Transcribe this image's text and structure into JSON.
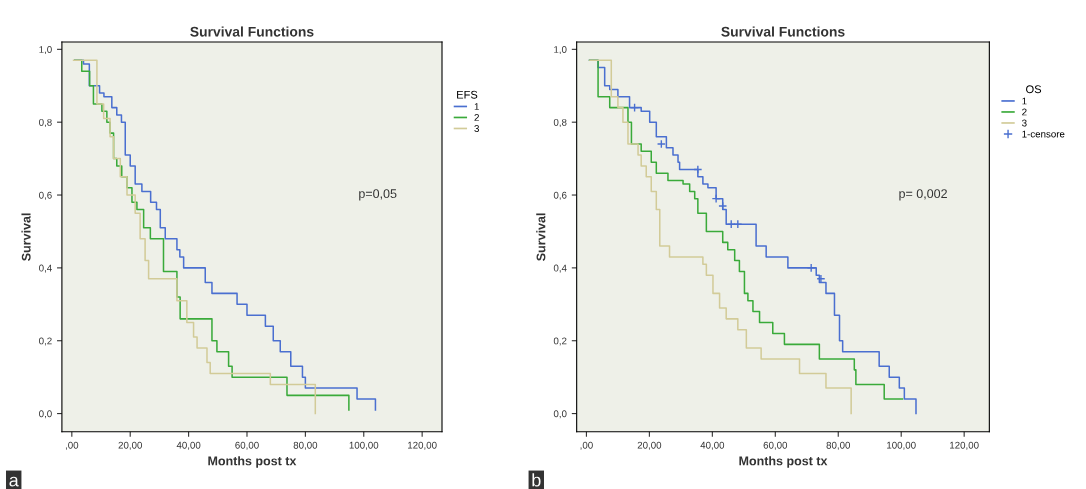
{
  "chart_data": [
    {
      "type": "step",
      "title": "Survival Functions",
      "xlabel": "Months post tx",
      "ylabel": "Survival",
      "legend_title": "EFS",
      "legend": "right",
      "grid": false,
      "xlim": [
        -3.4,
        126.8
      ],
      "ylim": [
        -0.05,
        1.02
      ],
      "xticks": [
        {
          "value": 0,
          "label": ",00"
        },
        {
          "value": 20,
          "label": "20,00"
        },
        {
          "value": 40,
          "label": "40,00"
        },
        {
          "value": 60,
          "label": "60,00"
        },
        {
          "value": 80,
          "label": "80,00"
        },
        {
          "value": 100,
          "label": "100,00"
        },
        {
          "value": 120,
          "label": "120,00"
        }
      ],
      "yticks": [
        {
          "value": 0,
          "label": "0,0"
        },
        {
          "value": 0.2,
          "label": "0,2"
        },
        {
          "value": 0.4,
          "label": "0,4"
        },
        {
          "value": 0.6,
          "label": "0,6"
        },
        {
          "value": 0.8,
          "label": "0,8"
        },
        {
          "value": 1.0,
          "label": "1,0"
        }
      ],
      "annotations": [
        "p=0,05",
        "a"
      ],
      "series": [
        {
          "name": "1",
          "color": "#4a6fd0",
          "x": [
            1,
            4,
            6,
            9.5,
            11,
            13.7,
            15.4,
            17,
            18.3,
            20,
            21.7,
            24,
            27,
            29,
            30.3,
            32,
            36,
            37,
            38.3,
            45.7,
            48,
            56.6,
            60,
            66.3,
            69,
            71.4,
            75,
            79,
            80,
            97.7,
            104
          ],
          "values": [
            0.97,
            0.96,
            0.9,
            0.88,
            0.87,
            0.84,
            0.82,
            0.8,
            0.71,
            0.68,
            0.63,
            0.61,
            0.58,
            0.56,
            0.51,
            0.48,
            0.45,
            0.43,
            0.4,
            0.36,
            0.33,
            0.3,
            0.27,
            0.24,
            0.2,
            0.17,
            0.13,
            0.1,
            0.07,
            0.04,
            0.01
          ]
        },
        {
          "name": "2",
          "color": "#3aaa3a",
          "x": [
            1,
            3.4,
            6.1,
            7.4,
            10.3,
            12,
            13.1,
            14.3,
            15.4,
            17.1,
            18.9,
            20.6,
            22.3,
            24.6,
            26.9,
            31.4,
            36,
            37.1,
            48,
            49.7,
            53.7,
            54.9,
            73.7,
            94.9
          ],
          "values": [
            0.97,
            0.94,
            0.9,
            0.85,
            0.83,
            0.8,
            0.77,
            0.7,
            0.68,
            0.65,
            0.62,
            0.58,
            0.56,
            0.51,
            0.48,
            0.39,
            0.32,
            0.26,
            0.2,
            0.17,
            0.13,
            0.1,
            0.05,
            0.01
          ]
        },
        {
          "name": "3",
          "color": "#d2cb98",
          "x": [
            0.6,
            8.6,
            10.9,
            13.1,
            14.3,
            16.6,
            18.9,
            21.7,
            23.4,
            25.1,
            26.3,
            36,
            39.4,
            41.7,
            42.9,
            46.3,
            47.4,
            68,
            83.4
          ],
          "values": [
            0.97,
            0.85,
            0.81,
            0.76,
            0.7,
            0.65,
            0.6,
            0.55,
            0.48,
            0.42,
            0.37,
            0.31,
            0.25,
            0.21,
            0.18,
            0.14,
            0.11,
            0.08,
            0.0
          ]
        }
      ]
    },
    {
      "type": "step",
      "title": "Survival Functions",
      "xlabel": "Months post tx",
      "ylabel": "Survival",
      "legend_title": "OS",
      "legend": "right",
      "grid": false,
      "xlim": [
        -3.1,
        128
      ],
      "ylim": [
        -0.05,
        1.02
      ],
      "xticks": [
        {
          "value": 0,
          "label": ",00"
        },
        {
          "value": 20,
          "label": "20,00"
        },
        {
          "value": 40,
          "label": "40,00"
        },
        {
          "value": 60,
          "label": "60,00"
        },
        {
          "value": 80,
          "label": "80,00"
        },
        {
          "value": 100,
          "label": "100,00"
        },
        {
          "value": 120,
          "label": "120,00"
        }
      ],
      "yticks": [
        {
          "value": 0,
          "label": "0,0"
        },
        {
          "value": 0.2,
          "label": "0,2"
        },
        {
          "value": 0.4,
          "label": "0,4"
        },
        {
          "value": 0.6,
          "label": "0,6"
        },
        {
          "value": 0.8,
          "label": "0,8"
        },
        {
          "value": 1.0,
          "label": "1,0"
        }
      ],
      "annotations": [
        "p= 0,002",
        "b"
      ],
      "series": [
        {
          "name": "1",
          "color": "#4a6fd0",
          "x": [
            1,
            3.7,
            5.8,
            7.4,
            10,
            13.7,
            17.4,
            20.1,
            22.2,
            25.4,
            27.5,
            29.1,
            29.6,
            35.4,
            37,
            38.6,
            41.2,
            43.3,
            44.4,
            53.9,
            57.1,
            64,
            73,
            74,
            76.1,
            78.8,
            80.4,
            81.4,
            93,
            96.2,
            99.4,
            101,
            104.7
          ],
          "values": [
            0.97,
            0.95,
            0.9,
            0.89,
            0.87,
            0.84,
            0.83,
            0.8,
            0.76,
            0.73,
            0.71,
            0.69,
            0.67,
            0.65,
            0.63,
            0.62,
            0.59,
            0.56,
            0.52,
            0.46,
            0.43,
            0.4,
            0.38,
            0.36,
            0.33,
            0.27,
            0.2,
            0.17,
            0.13,
            0.1,
            0.07,
            0.04,
            0.0
          ]
        },
        {
          "name": "2",
          "color": "#3aaa3a",
          "x": [
            1,
            3.7,
            7.4,
            13.2,
            14.3,
            17.4,
            20.6,
            22.2,
            25.9,
            30.7,
            32.8,
            34.4,
            35.4,
            38.1,
            43.3,
            44.9,
            47.1,
            48.6,
            50.2,
            51.3,
            52.9,
            55,
            59.2,
            62.9,
            74,
            85.1,
            85.6,
            94.6,
            100.4
          ],
          "values": [
            0.97,
            0.87,
            0.84,
            0.8,
            0.74,
            0.72,
            0.69,
            0.66,
            0.64,
            0.63,
            0.61,
            0.59,
            0.55,
            0.5,
            0.47,
            0.45,
            0.42,
            0.39,
            0.33,
            0.31,
            0.28,
            0.25,
            0.22,
            0.19,
            0.15,
            0.12,
            0.08,
            0.04,
            0.04
          ]
        },
        {
          "name": "3",
          "color": "#d2cb98",
          "x": [
            1.1,
            7.9,
            10,
            11.6,
            13.2,
            16.4,
            17.4,
            19,
            20.6,
            22.2,
            23.3,
            26.4,
            37,
            38.1,
            40.2,
            42.3,
            44.4,
            48.1,
            50.8,
            55.5,
            67.7,
            76.1,
            84.1
          ],
          "values": [
            0.97,
            0.87,
            0.84,
            0.8,
            0.74,
            0.71,
            0.68,
            0.65,
            0.61,
            0.56,
            0.46,
            0.43,
            0.41,
            0.38,
            0.33,
            0.29,
            0.26,
            0.23,
            0.18,
            0.15,
            0.11,
            0.07,
            0.0
          ]
        },
        {
          "name": "1-censore",
          "type": "scatter",
          "marker": "cross",
          "color": "#4a6fd0",
          "x": [
            15.3,
            23.8,
            35.4,
            41.2,
            43.3,
            46,
            48.1,
            71.4,
            74.5
          ],
          "values": [
            0.84,
            0.74,
            0.67,
            0.59,
            0.57,
            0.52,
            0.52,
            0.4,
            0.37
          ]
        }
      ]
    }
  ]
}
